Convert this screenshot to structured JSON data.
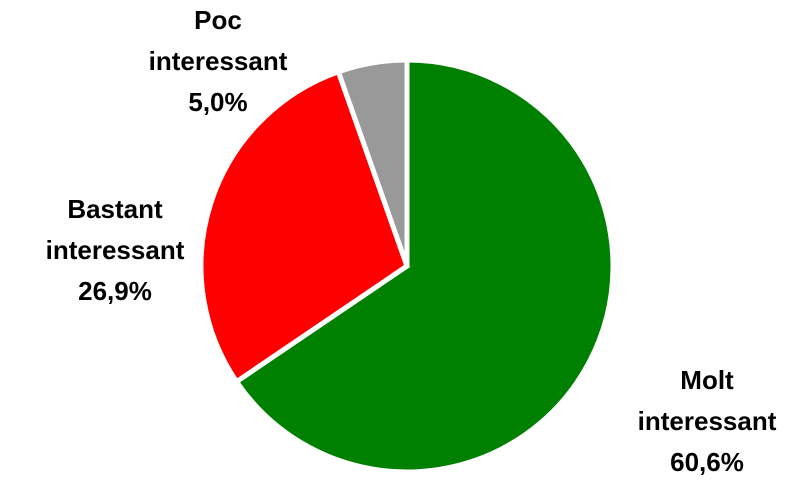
{
  "chart_data": {
    "type": "pie",
    "categories": [
      "Molt interessant",
      "Bastant interessant",
      "Poc interessant"
    ],
    "values": [
      60.6,
      26.9,
      5.0
    ],
    "value_labels": [
      "60,6%",
      "26,9%",
      "5,0%"
    ],
    "colors": [
      "#008000",
      "#ff0000",
      "#999999"
    ]
  }
}
